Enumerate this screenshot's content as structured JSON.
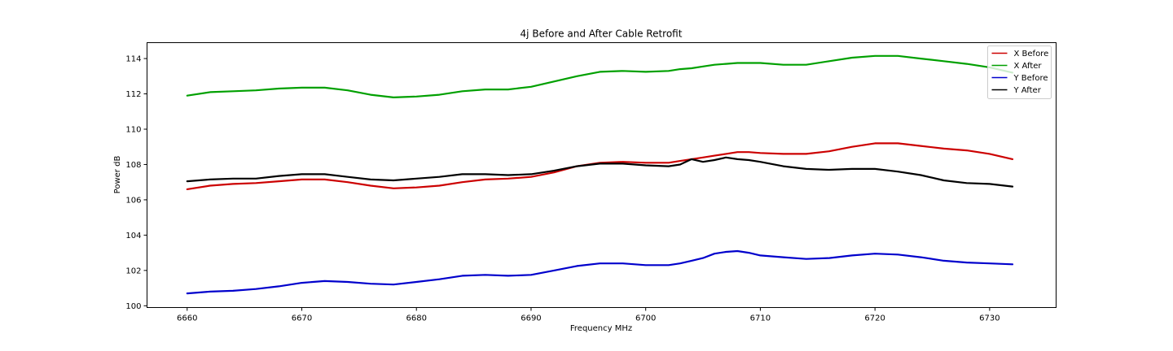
{
  "chart_data": {
    "type": "line",
    "title": "4j Before and After Cable Retrofit",
    "xlabel": "Frequency MHz",
    "ylabel": "Power dB",
    "xlim": [
      6656.5,
      6735.8
    ],
    "ylim": [
      99.9,
      114.9
    ],
    "xticks": [
      6660,
      6670,
      6680,
      6690,
      6700,
      6710,
      6720,
      6730
    ],
    "yticks": [
      100,
      102,
      104,
      106,
      108,
      110,
      112,
      114
    ],
    "grid": false,
    "legend_position": "top-right",
    "x": [
      6660,
      6662,
      6664,
      6666,
      6668,
      6670,
      6672,
      6674,
      6676,
      6678,
      6680,
      6682,
      6684,
      6686,
      6688,
      6690,
      6692,
      6694,
      6696,
      6698,
      6700,
      6702,
      6703,
      6704,
      6705,
      6706,
      6707,
      6708,
      6709,
      6710,
      6712,
      6714,
      6716,
      6718,
      6720,
      6722,
      6724,
      6726,
      6728,
      6730,
      6732
    ],
    "series": [
      {
        "name": "X Before",
        "color": "#cc0000",
        "values": [
          106.6,
          106.8,
          106.9,
          106.95,
          107.05,
          107.15,
          107.15,
          107.0,
          106.8,
          106.65,
          106.7,
          106.8,
          107.0,
          107.15,
          107.2,
          107.3,
          107.55,
          107.9,
          108.1,
          108.15,
          108.1,
          108.1,
          108.2,
          108.3,
          108.4,
          108.5,
          108.6,
          108.7,
          108.7,
          108.65,
          108.6,
          108.6,
          108.75,
          109.0,
          109.2,
          109.2,
          109.05,
          108.9,
          108.8,
          108.6,
          108.3
        ]
      },
      {
        "name": "X After",
        "color": "#00a000",
        "values": [
          111.9,
          112.1,
          112.15,
          112.2,
          112.3,
          112.35,
          112.35,
          112.2,
          111.95,
          111.8,
          111.85,
          111.95,
          112.15,
          112.25,
          112.25,
          112.4,
          112.7,
          113.0,
          113.25,
          113.3,
          113.25,
          113.3,
          113.4,
          113.45,
          113.55,
          113.65,
          113.7,
          113.75,
          113.75,
          113.75,
          113.65,
          113.65,
          113.85,
          114.05,
          114.15,
          114.15,
          114.0,
          113.85,
          113.7,
          113.5,
          113.2
        ]
      },
      {
        "name": "Y Before",
        "color": "#0000cc",
        "values": [
          100.7,
          100.8,
          100.85,
          100.95,
          101.1,
          101.3,
          101.4,
          101.35,
          101.25,
          101.2,
          101.35,
          101.5,
          101.7,
          101.75,
          101.7,
          101.75,
          102.0,
          102.25,
          102.4,
          102.4,
          102.3,
          102.3,
          102.4,
          102.55,
          102.7,
          102.95,
          103.05,
          103.1,
          103.0,
          102.85,
          102.75,
          102.65,
          102.7,
          102.85,
          102.95,
          102.9,
          102.75,
          102.55,
          102.45,
          102.4,
          102.35
        ]
      },
      {
        "name": "Y After",
        "color": "#000000",
        "values": [
          107.05,
          107.15,
          107.2,
          107.2,
          107.35,
          107.45,
          107.45,
          107.3,
          107.15,
          107.1,
          107.2,
          107.3,
          107.45,
          107.45,
          107.4,
          107.45,
          107.65,
          107.9,
          108.05,
          108.05,
          107.95,
          107.9,
          108.0,
          108.3,
          108.15,
          108.25,
          108.4,
          108.3,
          108.25,
          108.15,
          107.9,
          107.75,
          107.7,
          107.75,
          107.75,
          107.6,
          107.4,
          107.1,
          106.95,
          106.9,
          106.75
        ]
      }
    ]
  }
}
